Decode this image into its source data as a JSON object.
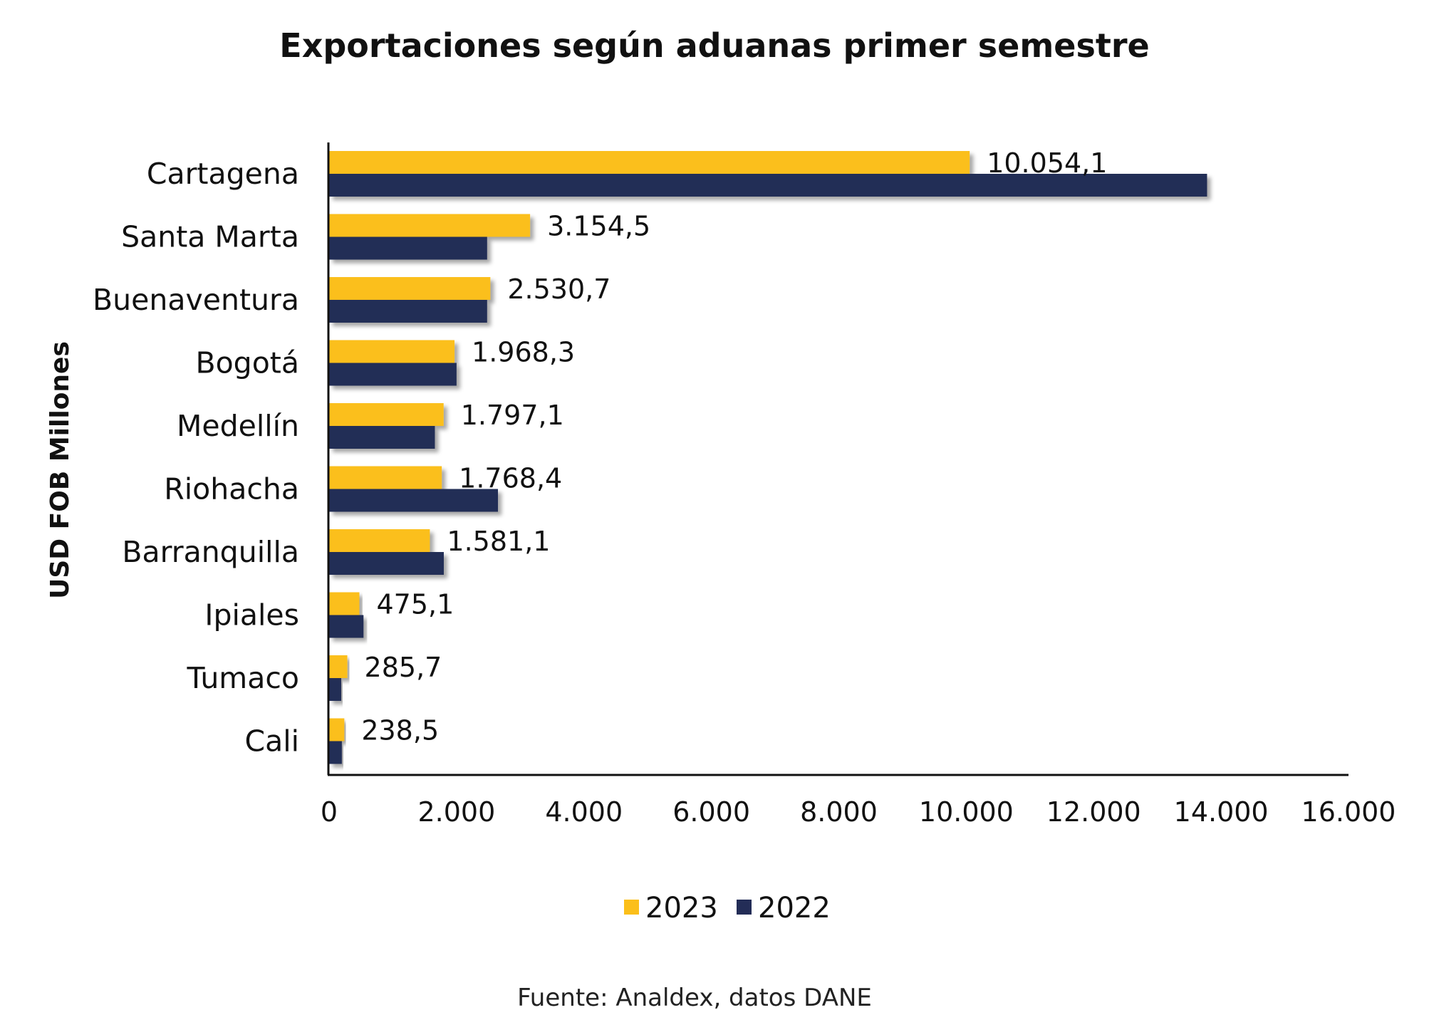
{
  "chart_data": {
    "type": "bar",
    "orientation": "horizontal",
    "title": "Exportaciones según aduanas primer semestre",
    "ylabel": "USD FOB Millones",
    "xlabel": "",
    "categories": [
      "Cartagena",
      "Santa Marta",
      "Buenaventura",
      "Bogotá",
      "Medellín",
      "Riohacha",
      "Barranquilla",
      "Ipiales",
      "Tumaco",
      "Cali"
    ],
    "series": [
      {
        "name": "2023",
        "color": "#FBBF1A",
        "values": [
          10054.1,
          3154.5,
          2530.7,
          1968.3,
          1797.1,
          1768.4,
          1581.1,
          475.1,
          285.7,
          238.5
        ],
        "data_labels": [
          "10.054,1",
          "3.154,5",
          "2.530,7",
          "1.968,3",
          "1.797,1",
          "1.768,4",
          "1.581,1",
          "475,1",
          "285,7",
          "238,5"
        ]
      },
      {
        "name": "2022",
        "color": "#232D57",
        "values": [
          13780,
          2480,
          2480,
          2000,
          1660,
          2650,
          1800,
          540,
          190,
          200
        ]
      }
    ],
    "xlim": [
      0,
      16000
    ],
    "xticks": [
      0,
      2000,
      4000,
      6000,
      8000,
      10000,
      12000,
      14000,
      16000
    ],
    "xtick_labels": [
      "0",
      "2.000",
      "4.000",
      "6.000",
      "8.000",
      "10.000",
      "12.000",
      "14.000",
      "16.000"
    ],
    "grid": false,
    "legend_position": "bottom-center",
    "source": "Fuente: Analdex, datos DANE"
  }
}
